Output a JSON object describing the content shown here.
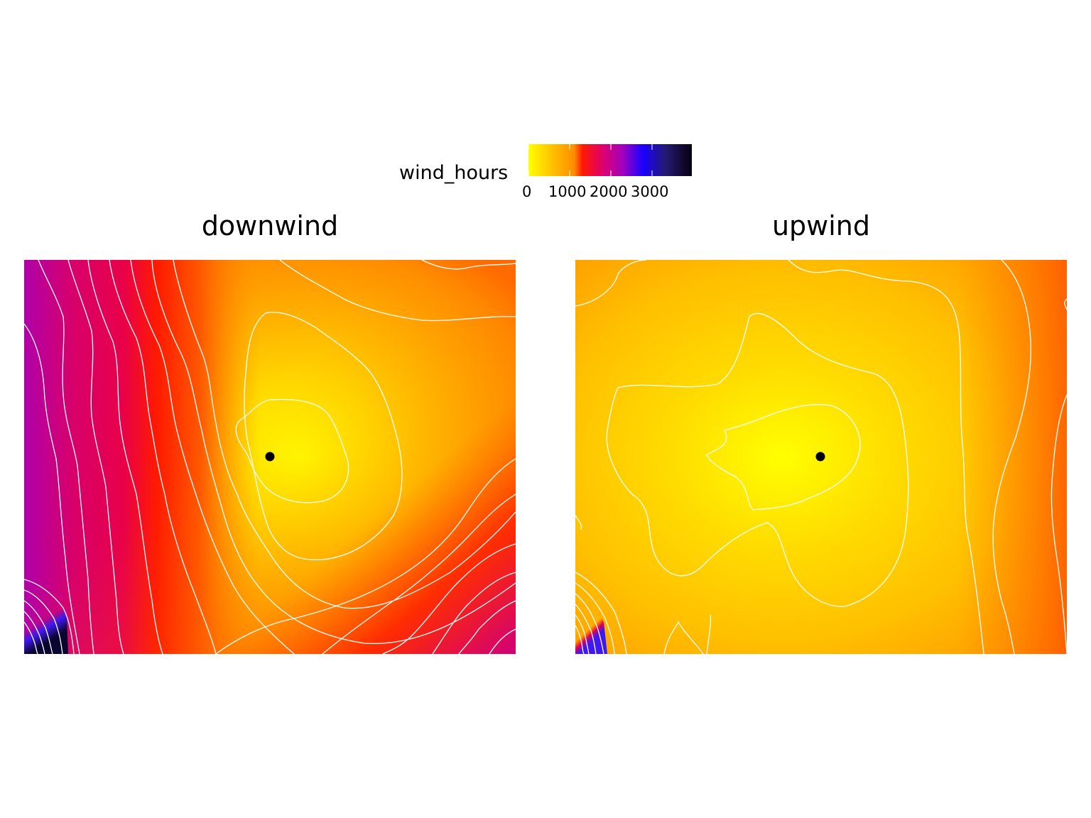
{
  "legend": {
    "title": "wind_hours",
    "ticks": [
      "0",
      "1000",
      "2000",
      "3000"
    ],
    "colors": [
      "#ffff00",
      "#ff8c00",
      "#ff0000",
      "#e0007a",
      "#9900cc",
      "#0000ff",
      "#1a0a4a",
      "#000000"
    ]
  },
  "panels": [
    {
      "title": "downwind",
      "marker": "source-point"
    },
    {
      "title": "upwind",
      "marker": "source-point"
    }
  ],
  "chart_data": {
    "type": "heatmap",
    "title": "",
    "fill_variable": "wind_hours",
    "scale_range": [
      0,
      3600
    ],
    "scale_ticks": [
      0,
      1000,
      2000,
      3000
    ],
    "contour_color": "#ffffff",
    "facets": [
      "downwind",
      "upwind"
    ],
    "legend_position": "top"
  }
}
